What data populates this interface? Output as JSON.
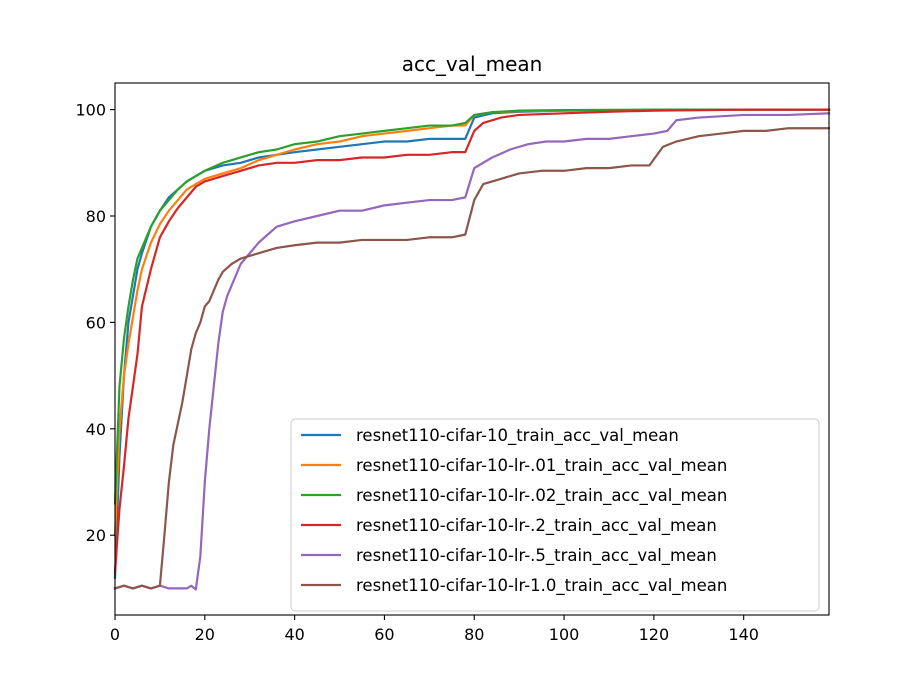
{
  "chart_data": {
    "type": "line",
    "title": "acc_val_mean",
    "xlabel": "",
    "ylabel": "",
    "xlim": [
      0,
      159
    ],
    "ylim": [
      5,
      105
    ],
    "xticks": [
      0,
      20,
      40,
      60,
      80,
      100,
      120,
      140
    ],
    "yticks": [
      20,
      40,
      60,
      80,
      100
    ],
    "grid": false,
    "legend_position": "lower-right",
    "series": [
      {
        "name": "resnet110-cifar-10_train_acc_val_mean",
        "color": "#1f77b4",
        "points": [
          [
            0,
            12
          ],
          [
            1,
            35
          ],
          [
            2,
            50
          ],
          [
            3,
            60
          ],
          [
            4,
            65
          ],
          [
            5,
            70
          ],
          [
            6,
            73
          ],
          [
            8,
            78
          ],
          [
            10,
            81
          ],
          [
            12,
            83.5
          ],
          [
            14,
            85
          ],
          [
            16,
            86.5
          ],
          [
            18,
            87.5
          ],
          [
            20,
            88.5
          ],
          [
            24,
            89.5
          ],
          [
            28,
            90
          ],
          [
            32,
            91
          ],
          [
            36,
            91.5
          ],
          [
            40,
            92
          ],
          [
            45,
            92.5
          ],
          [
            50,
            93
          ],
          [
            55,
            93.5
          ],
          [
            60,
            94
          ],
          [
            65,
            94
          ],
          [
            70,
            94.5
          ],
          [
            75,
            94.5
          ],
          [
            78,
            94.5
          ],
          [
            80,
            98.5
          ],
          [
            84,
            99.3
          ],
          [
            90,
            99.6
          ],
          [
            100,
            99.8
          ],
          [
            120,
            99.9
          ],
          [
            159,
            100
          ]
        ]
      },
      {
        "name": "resnet110-cifar-10-lr-.01_train_acc_val_mean",
        "color": "#ff7f0e",
        "points": [
          [
            0,
            20
          ],
          [
            1,
            40
          ],
          [
            2,
            50
          ],
          [
            3,
            56
          ],
          [
            4,
            61
          ],
          [
            5,
            66
          ],
          [
            6,
            70
          ],
          [
            8,
            75
          ],
          [
            10,
            78.5
          ],
          [
            12,
            81
          ],
          [
            14,
            83
          ],
          [
            16,
            85
          ],
          [
            18,
            86
          ],
          [
            20,
            87
          ],
          [
            24,
            88
          ],
          [
            28,
            89
          ],
          [
            32,
            90.5
          ],
          [
            36,
            91.5
          ],
          [
            40,
            92.5
          ],
          [
            45,
            93.5
          ],
          [
            50,
            94
          ],
          [
            55,
            95
          ],
          [
            60,
            95.5
          ],
          [
            65,
            96
          ],
          [
            70,
            96.5
          ],
          [
            75,
            97
          ],
          [
            78,
            97
          ],
          [
            80,
            99
          ],
          [
            84,
            99.5
          ],
          [
            90,
            99.7
          ],
          [
            100,
            99.8
          ],
          [
            120,
            99.9
          ],
          [
            159,
            100
          ]
        ]
      },
      {
        "name": "resnet110-cifar-10-lr-.02_train_acc_val_mean",
        "color": "#2ca02c",
        "points": [
          [
            0,
            26
          ],
          [
            1,
            48
          ],
          [
            2,
            57
          ],
          [
            3,
            63
          ],
          [
            4,
            68
          ],
          [
            5,
            72
          ],
          [
            6,
            74
          ],
          [
            8,
            78
          ],
          [
            10,
            81
          ],
          [
            12,
            83
          ],
          [
            14,
            85
          ],
          [
            16,
            86.5
          ],
          [
            18,
            87.5
          ],
          [
            20,
            88.5
          ],
          [
            24,
            90
          ],
          [
            28,
            91
          ],
          [
            32,
            92
          ],
          [
            36,
            92.5
          ],
          [
            40,
            93.5
          ],
          [
            45,
            94
          ],
          [
            50,
            95
          ],
          [
            55,
            95.5
          ],
          [
            60,
            96
          ],
          [
            65,
            96.5
          ],
          [
            70,
            97
          ],
          [
            75,
            97
          ],
          [
            78,
            97.5
          ],
          [
            80,
            99
          ],
          [
            84,
            99.5
          ],
          [
            90,
            99.8
          ],
          [
            100,
            99.9
          ],
          [
            120,
            100
          ],
          [
            159,
            100
          ]
        ]
      },
      {
        "name": "resnet110-cifar-10-lr-.2_train_acc_val_mean",
        "color": "#d62728",
        "points": [
          [
            0,
            13
          ],
          [
            1,
            25
          ],
          [
            2,
            33
          ],
          [
            3,
            42
          ],
          [
            4,
            48
          ],
          [
            5,
            54
          ],
          [
            6,
            63
          ],
          [
            8,
            70
          ],
          [
            10,
            76
          ],
          [
            12,
            79
          ],
          [
            14,
            81.5
          ],
          [
            16,
            83.5
          ],
          [
            18,
            85.5
          ],
          [
            20,
            86.5
          ],
          [
            24,
            87.5
          ],
          [
            28,
            88.5
          ],
          [
            32,
            89.5
          ],
          [
            36,
            90
          ],
          [
            40,
            90
          ],
          [
            45,
            90.5
          ],
          [
            50,
            90.5
          ],
          [
            55,
            91
          ],
          [
            60,
            91
          ],
          [
            65,
            91.5
          ],
          [
            70,
            91.5
          ],
          [
            75,
            92
          ],
          [
            78,
            92
          ],
          [
            80,
            96
          ],
          [
            82,
            97.5
          ],
          [
            86,
            98.5
          ],
          [
            90,
            99
          ],
          [
            100,
            99.3
          ],
          [
            110,
            99.6
          ],
          [
            120,
            99.8
          ],
          [
            140,
            100
          ],
          [
            159,
            100
          ]
        ]
      },
      {
        "name": "resnet110-cifar-10-lr-.5_train_acc_val_mean",
        "color": "#9467bd",
        "points": [
          [
            0,
            10
          ],
          [
            2,
            10.5
          ],
          [
            4,
            10
          ],
          [
            6,
            10.5
          ],
          [
            8,
            10
          ],
          [
            10,
            10.5
          ],
          [
            12,
            10
          ],
          [
            14,
            10
          ],
          [
            16,
            10
          ],
          [
            17,
            10.5
          ],
          [
            18,
            9.8
          ],
          [
            19,
            16
          ],
          [
            20,
            30
          ],
          [
            21,
            40
          ],
          [
            22,
            48
          ],
          [
            23,
            56
          ],
          [
            24,
            62
          ],
          [
            25,
            65
          ],
          [
            26,
            67
          ],
          [
            28,
            71
          ],
          [
            30,
            73
          ],
          [
            32,
            75
          ],
          [
            34,
            76.5
          ],
          [
            36,
            78
          ],
          [
            40,
            79
          ],
          [
            45,
            80
          ],
          [
            50,
            81
          ],
          [
            55,
            81
          ],
          [
            60,
            82
          ],
          [
            65,
            82.5
          ],
          [
            70,
            83
          ],
          [
            75,
            83
          ],
          [
            78,
            83.5
          ],
          [
            80,
            89
          ],
          [
            84,
            91
          ],
          [
            88,
            92.5
          ],
          [
            92,
            93.5
          ],
          [
            96,
            94
          ],
          [
            100,
            94
          ],
          [
            105,
            94.5
          ],
          [
            110,
            94.5
          ],
          [
            115,
            95
          ],
          [
            120,
            95.5
          ],
          [
            123,
            96
          ],
          [
            125,
            98
          ],
          [
            130,
            98.5
          ],
          [
            140,
            99
          ],
          [
            150,
            99
          ],
          [
            159,
            99.3
          ]
        ]
      },
      {
        "name": "resnet110-cifar-10-lr-1.0_train_acc_val_mean",
        "color": "#8c564b",
        "points": [
          [
            0,
            10
          ],
          [
            2,
            10.5
          ],
          [
            4,
            10
          ],
          [
            6,
            10.5
          ],
          [
            8,
            10
          ],
          [
            10,
            10.5
          ],
          [
            11,
            20
          ],
          [
            12,
            30
          ],
          [
            13,
            37
          ],
          [
            14,
            41
          ],
          [
            15,
            45
          ],
          [
            16,
            50
          ],
          [
            17,
            55
          ],
          [
            18,
            58
          ],
          [
            19,
            60
          ],
          [
            20,
            63
          ],
          [
            21,
            64
          ],
          [
            22,
            66
          ],
          [
            23,
            68
          ],
          [
            24,
            69.5
          ],
          [
            26,
            71
          ],
          [
            28,
            72
          ],
          [
            32,
            73
          ],
          [
            36,
            74
          ],
          [
            40,
            74.5
          ],
          [
            45,
            75
          ],
          [
            50,
            75
          ],
          [
            55,
            75.5
          ],
          [
            60,
            75.5
          ],
          [
            65,
            75.5
          ],
          [
            70,
            76
          ],
          [
            75,
            76
          ],
          [
            78,
            76.5
          ],
          [
            80,
            83
          ],
          [
            82,
            86
          ],
          [
            86,
            87
          ],
          [
            90,
            88
          ],
          [
            95,
            88.5
          ],
          [
            100,
            88.5
          ],
          [
            105,
            89
          ],
          [
            110,
            89
          ],
          [
            115,
            89.5
          ],
          [
            119,
            89.5
          ],
          [
            122,
            93
          ],
          [
            125,
            94
          ],
          [
            130,
            95
          ],
          [
            135,
            95.5
          ],
          [
            140,
            96
          ],
          [
            145,
            96
          ],
          [
            150,
            96.5
          ],
          [
            155,
            96.5
          ],
          [
            159,
            96.5
          ]
        ]
      }
    ]
  }
}
